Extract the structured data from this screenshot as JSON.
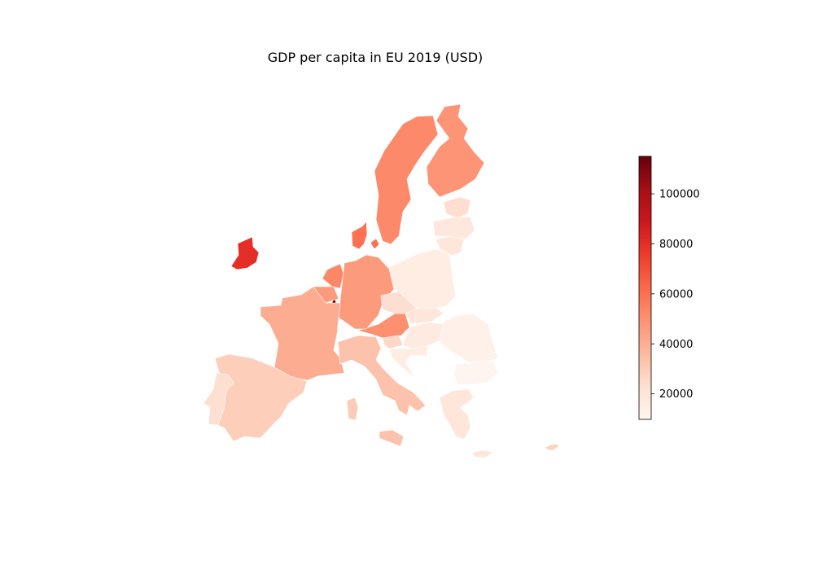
{
  "chart_data": {
    "type": "choropleth",
    "title": "GDP per capita in EU 2019 (USD)",
    "colormap": "Reds",
    "color_range": [
      9800,
      115000
    ],
    "colorbar": {
      "ticks": [
        20000,
        40000,
        60000,
        80000,
        100000
      ],
      "tick_labels": [
        "20000",
        "40000",
        "60000",
        "80000",
        "100000"
      ]
    },
    "countries": [
      {
        "name": "Ireland",
        "value": 80000
      },
      {
        "name": "Luxembourg",
        "value": 115000
      },
      {
        "name": "Denmark",
        "value": 60000
      },
      {
        "name": "Sweden",
        "value": 52000
      },
      {
        "name": "Finland",
        "value": 48500
      },
      {
        "name": "Netherlands",
        "value": 53000
      },
      {
        "name": "Austria",
        "value": 50000
      },
      {
        "name": "Belgium",
        "value": 46500
      },
      {
        "name": "Germany",
        "value": 46500
      },
      {
        "name": "France",
        "value": 40500
      },
      {
        "name": "Italy",
        "value": 33500
      },
      {
        "name": "Spain",
        "value": 29500
      },
      {
        "name": "Malta",
        "value": 30000
      },
      {
        "name": "Cyprus",
        "value": 28000
      },
      {
        "name": "Slovenia",
        "value": 26000
      },
      {
        "name": "Estonia",
        "value": 23500
      },
      {
        "name": "Czechia",
        "value": 23500
      },
      {
        "name": "Portugal",
        "value": 23000
      },
      {
        "name": "Lithuania",
        "value": 19500
      },
      {
        "name": "Slovakia",
        "value": 19500
      },
      {
        "name": "Greece",
        "value": 19500
      },
      {
        "name": "Latvia",
        "value": 17800
      },
      {
        "name": "Hungary",
        "value": 16700
      },
      {
        "name": "Poland",
        "value": 15700
      },
      {
        "name": "Croatia",
        "value": 15000
      },
      {
        "name": "Romania",
        "value": 12900
      },
      {
        "name": "Bulgaria",
        "value": 9800
      }
    ]
  }
}
